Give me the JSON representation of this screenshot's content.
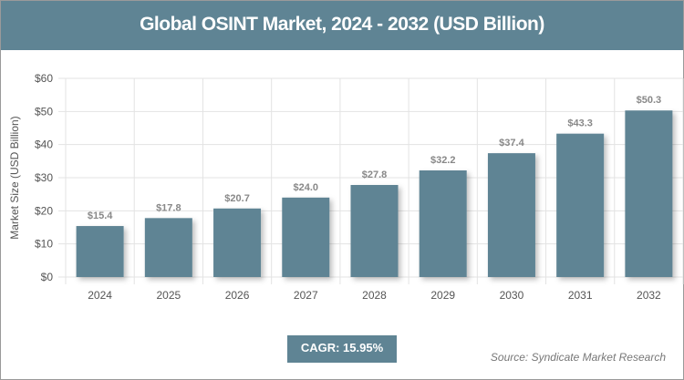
{
  "chart_data": {
    "type": "bar",
    "title": "Global OSINT Market, 2024 - 2032 (USD Billion)",
    "ylabel": "Market Size (USD Billion)",
    "xlabel": "",
    "categories": [
      "2024",
      "2025",
      "2026",
      "2027",
      "2028",
      "2029",
      "2030",
      "2031",
      "2032"
    ],
    "values": [
      15.4,
      17.8,
      20.7,
      24.0,
      27.8,
      32.2,
      37.4,
      43.3,
      50.3
    ],
    "data_labels": [
      "$15.4",
      "$17.8",
      "$20.7",
      "$24.0",
      "$27.8",
      "$32.2",
      "$37.4",
      "$43.3",
      "$50.3"
    ],
    "ylim": [
      0,
      60
    ],
    "yticks": [
      0,
      10,
      20,
      30,
      40,
      50,
      60
    ],
    "ytick_labels": [
      "$0",
      "$10",
      "$20",
      "$30",
      "$40",
      "$50",
      "$60"
    ],
    "grid": true,
    "bar_color": "#5f8494"
  },
  "cagr": "CAGR: 15.95%",
  "source": "Source: Syndicate Market Research"
}
